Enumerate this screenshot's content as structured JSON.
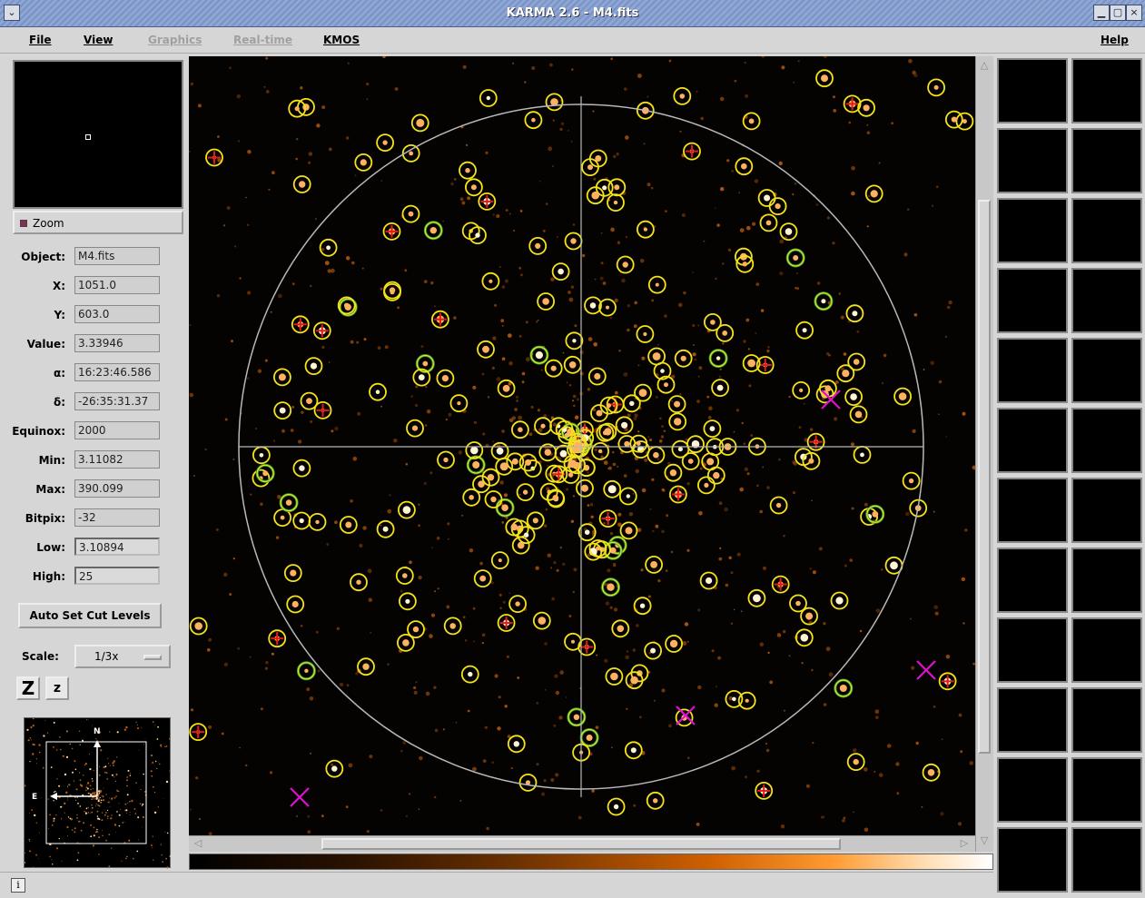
{
  "window": {
    "title": "KARMA 2.6 - M4.fits"
  },
  "menu": {
    "file": "File",
    "view": "View",
    "graphics": "Graphics",
    "realtime": "Real-time",
    "kmos": "KMOS",
    "help": "Help"
  },
  "zoom": {
    "label": "Zoom"
  },
  "fields": [
    {
      "label": "Object:",
      "value": "M4.fits"
    },
    {
      "label": "X:",
      "value": "1051.0"
    },
    {
      "label": "Y:",
      "value": "603.0"
    },
    {
      "label": "Value:",
      "value": "3.33946"
    },
    {
      "label": "α:",
      "value": "16:23:46.586"
    },
    {
      "label": "δ:",
      "value": "-26:35:31.37"
    },
    {
      "label": "Equinox:",
      "value": "2000"
    },
    {
      "label": "Min:",
      "value": "3.11082"
    },
    {
      "label": "Max:",
      "value": "390.099"
    },
    {
      "label": "Bitpix:",
      "value": "-32"
    },
    {
      "label": "Low:",
      "value": "3.10894"
    },
    {
      "label": "High:",
      "value": "25"
    }
  ],
  "buttons": {
    "auto_set": "Auto Set Cut Levels",
    "z_big": "Z",
    "z_small": "z"
  },
  "scale": {
    "label": "Scale:",
    "value": "1/3x"
  },
  "overview": {
    "north": "N",
    "east": "E"
  },
  "status": {
    "info": "i"
  },
  "colors": {
    "yellow_marker": "#f5e31a",
    "green_marker": "#2f9a3a",
    "red_marker": "#e11a1a",
    "magenta_marker": "#e010d0",
    "crosshair": "#b8b8b8"
  }
}
